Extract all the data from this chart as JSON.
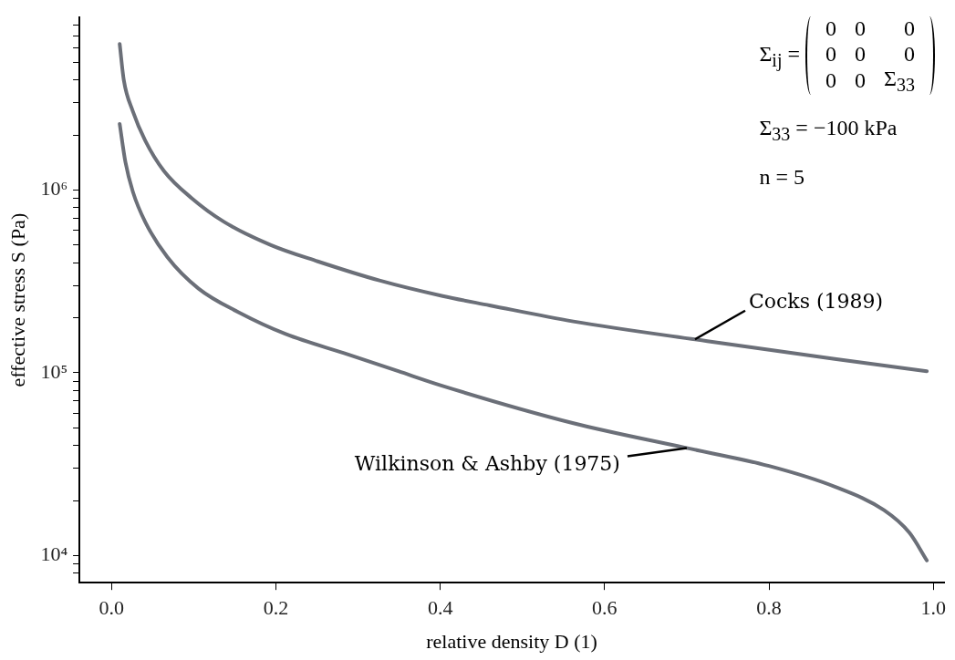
{
  "chart_data": {
    "type": "line",
    "xlabel": "relative density D (1)",
    "ylabel": "effective stress S (Pa)",
    "annotations": [
      "Σ$_{ij}$ = 0 0 0 0 0 0 0 0 Σ$_{33}$",
      "Σ$_{33}$ = −100 kPa",
      "n = 5"
    ],
    "series": [
      {
        "name": "Cocks (1989)",
        "color": "#6b6f78",
        "x": [
          0.01,
          0.015,
          0.026,
          0.041,
          0.064,
          0.098,
          0.137,
          0.194,
          0.251,
          0.326,
          0.403,
          0.46,
          0.562,
          0.725,
          0.88,
          0.992
        ],
        "values": [
          6300000,
          4000000,
          2700000,
          1870000,
          1270000,
          900000,
          670000,
          500000,
          407000,
          320000,
          263000,
          234000,
          191000,
          149000,
          119000,
          102000
        ]
      },
      {
        "name": "Wilkinson & Ashby (1975)",
        "color": "#6b6f78",
        "x": [
          0.01,
          0.017,
          0.026,
          0.041,
          0.068,
          0.106,
          0.155,
          0.212,
          0.288,
          0.349,
          0.402,
          0.562,
          0.697,
          0.8,
          0.88,
          0.94,
          0.971,
          0.992
        ],
        "values": [
          2300000,
          1420000,
          980000,
          670000,
          430000,
          289000,
          214000,
          163000,
          126000,
          102000,
          85000,
          53000,
          39000,
          30900,
          23800,
          17700,
          13300,
          9400
        ]
      }
    ],
    "log": "y",
    "xlim": [
      -0.039,
      1.013
    ],
    "ylim": [
      7100,
      8800000
    ],
    "xticks": [
      {
        "value": 0,
        "label": "0.0"
      },
      0.2,
      0.4,
      0.6,
      0.8,
      {
        "value": 1,
        "label": "1.0"
      }
    ],
    "yticks": [
      {
        "value": 8000,
        "label": null
      },
      {
        "value": 9000,
        "label": null
      },
      {
        "value": 10000,
        "label": "10⁴"
      },
      {
        "value": 20000,
        "label": null
      },
      {
        "value": 30000,
        "label": null
      },
      {
        "value": 40000,
        "label": null
      },
      {
        "value": 50000,
        "label": null
      },
      {
        "value": 60000,
        "label": null
      },
      {
        "value": 70000,
        "label": null
      },
      {
        "value": 80000,
        "label": null
      },
      {
        "value": 90000,
        "label": null
      },
      {
        "value": 100000,
        "label": "10⁵"
      },
      {
        "value": 200000,
        "label": null
      },
      {
        "value": 300000,
        "label": null
      },
      {
        "value": 400000,
        "label": null
      },
      {
        "value": 500000,
        "label": null
      },
      {
        "value": 600000,
        "label": null
      },
      {
        "value": 700000,
        "label": null
      },
      {
        "value": 800000,
        "label": null
      },
      {
        "value": 900000,
        "label": null
      },
      {
        "value": 1000000,
        "label": "10⁶"
      },
      {
        "value": 2000000,
        "label": null
      },
      {
        "value": 3000000,
        "label": null
      },
      {
        "value": 4000000,
        "label": null
      },
      {
        "value": 5000000,
        "label": null
      },
      {
        "value": 6000000,
        "label": null
      },
      {
        "value": 7000000,
        "label": null
      },
      {
        "value": 8000000,
        "label": null
      }
    ],
    "grid": false,
    "legend": false,
    "marker": "none",
    "line_style": "solid"
  }
}
